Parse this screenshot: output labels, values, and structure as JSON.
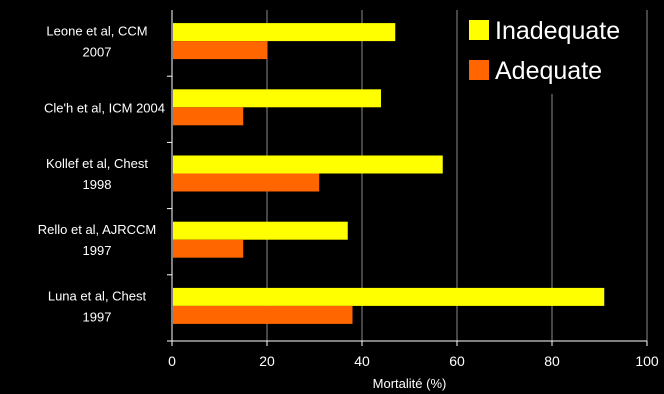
{
  "chart_data": {
    "type": "bar",
    "orientation": "horizontal",
    "categories": [
      [
        "Leone et al, CCM",
        "2007"
      ],
      [
        "Cle'h et al, ICM 2004"
      ],
      [
        "Kollef et al, Chest",
        "1998"
      ],
      [
        "Rello et al, AJRCCM",
        "1997"
      ],
      [
        "Luna et al, Chest",
        "1997"
      ]
    ],
    "series": [
      {
        "name": "Inadequate",
        "color": "#ffff00",
        "values": [
          47,
          44,
          57,
          37,
          91
        ]
      },
      {
        "name": "Adequate",
        "color": "#ff6600",
        "values": [
          20,
          15,
          31,
          15,
          38
        ]
      }
    ],
    "xlabel": "Mortalité (%)",
    "xlim": [
      0,
      100
    ],
    "xticks": [
      0,
      20,
      40,
      60,
      80,
      100
    ],
    "grid": true,
    "legend_position": "top-right",
    "background": "#000000"
  }
}
